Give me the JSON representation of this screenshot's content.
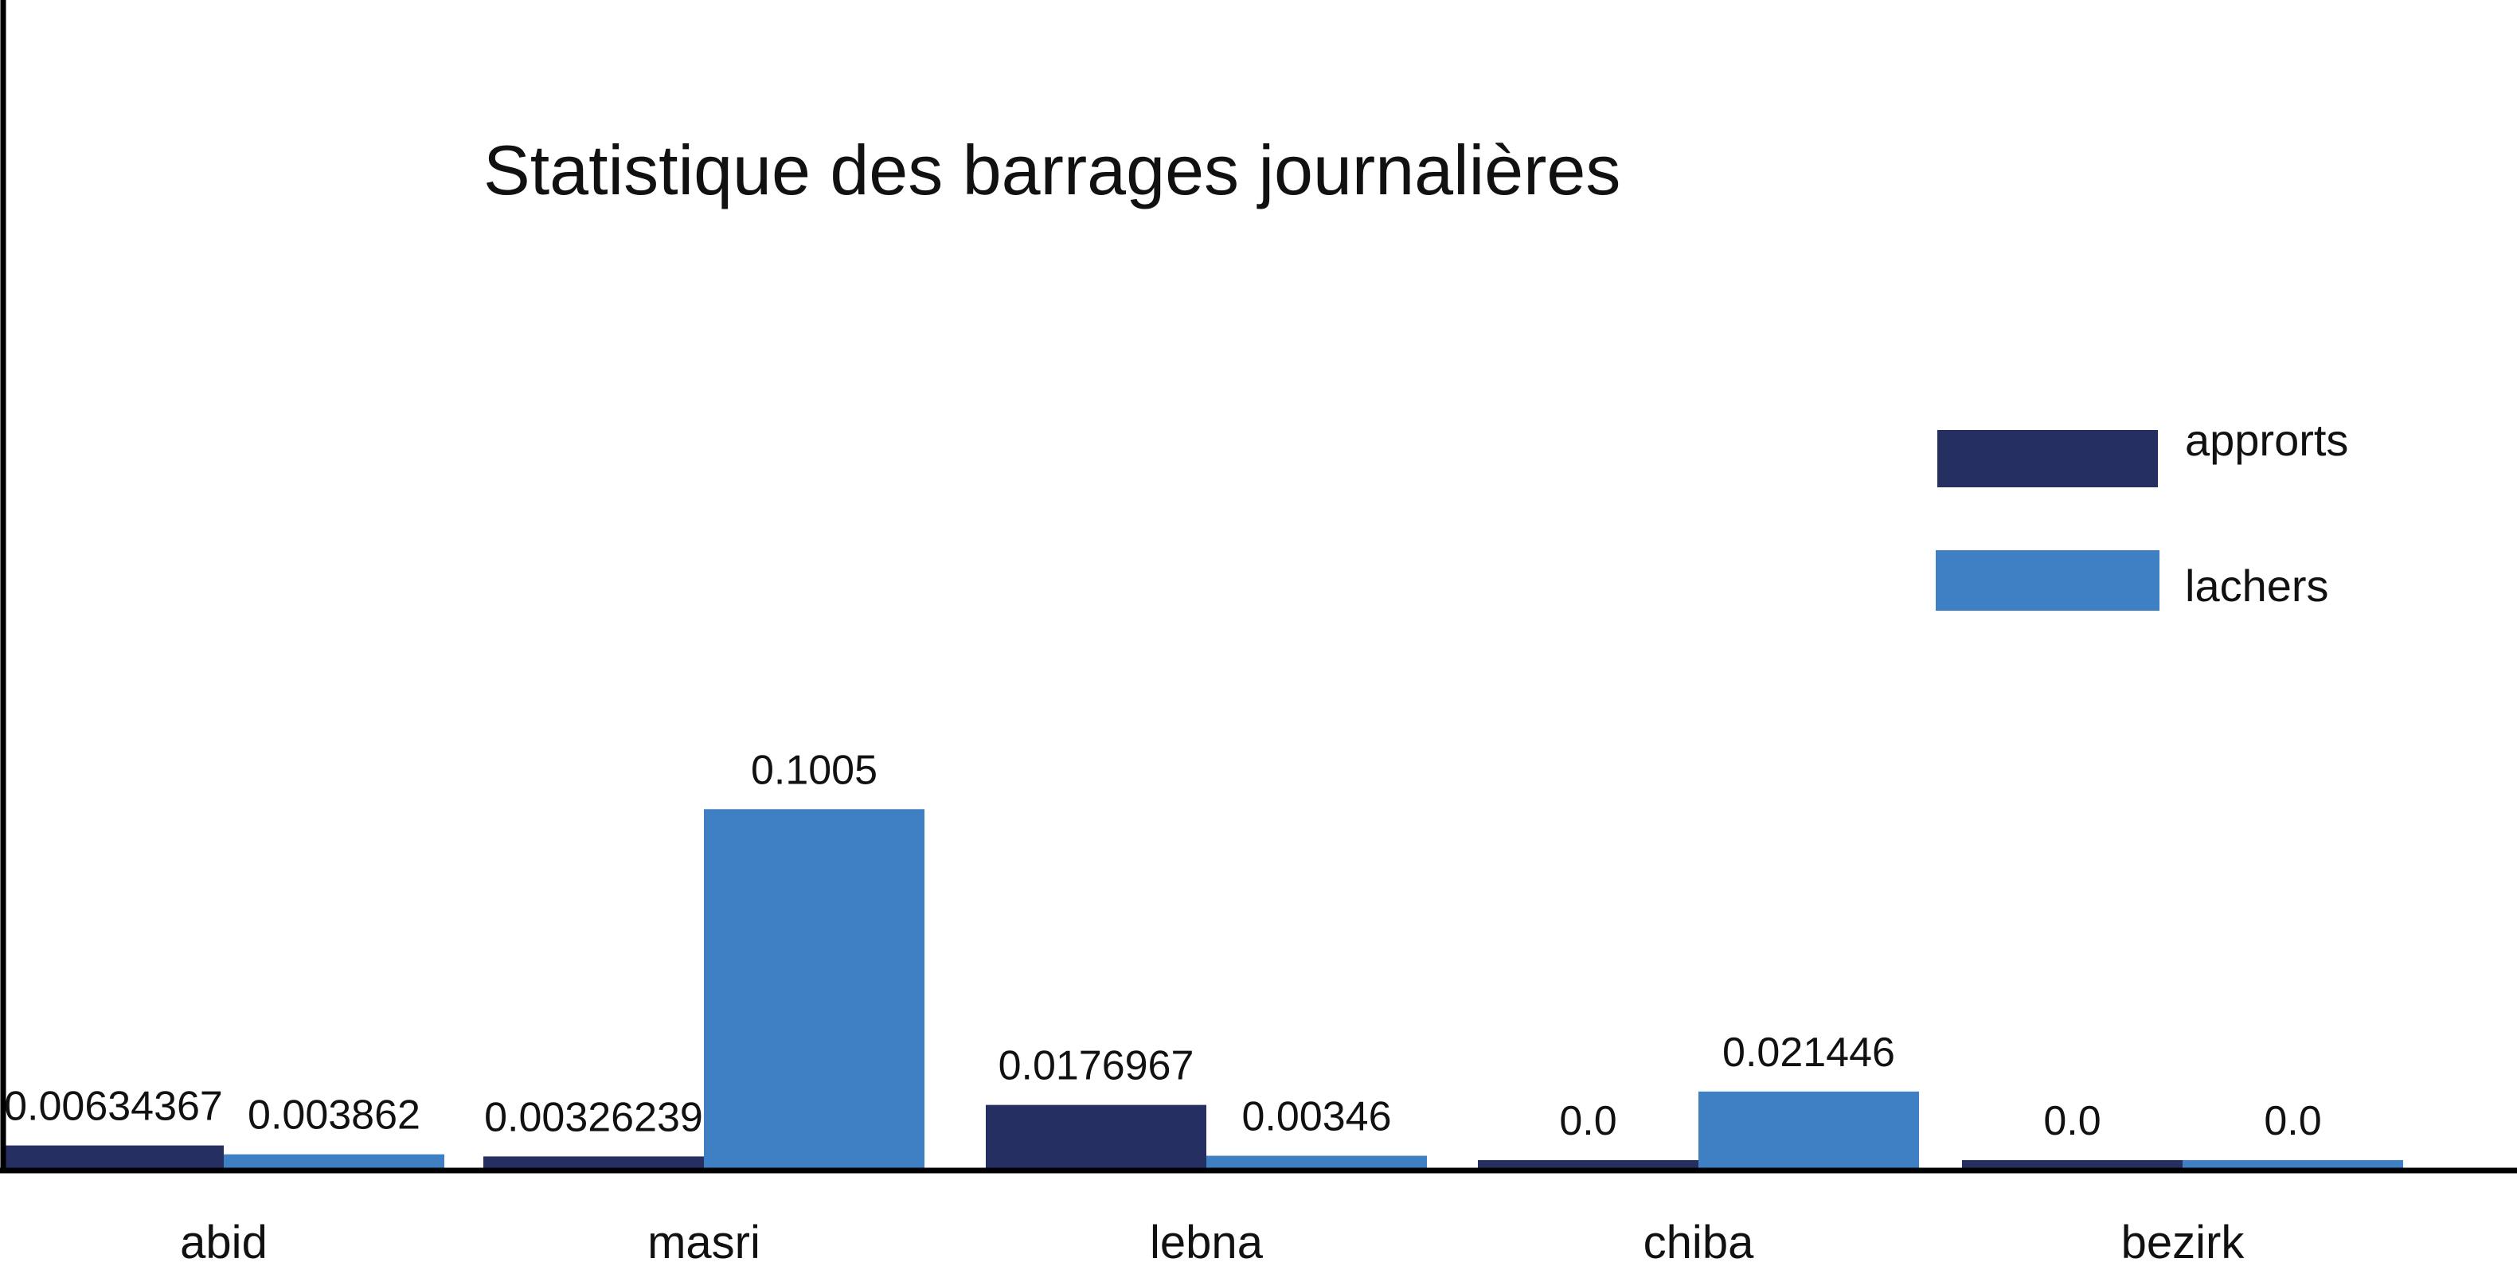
{
  "chart_data": {
    "type": "bar",
    "title": "Statistique des barrages journalières",
    "xlabel": "",
    "ylabel": "",
    "categories": [
      "abid",
      "masri",
      "lebna",
      "chiba",
      "bezirk"
    ],
    "series": [
      {
        "name": "approrts",
        "color": "#252f62",
        "values": [
          0.00634367,
          0.00326239,
          0.0176967,
          0.0,
          0.0
        ],
        "labels": [
          "0.00634367",
          "0.00326239",
          "0.0176967",
          "0.0",
          "0.0"
        ]
      },
      {
        "name": "lachers",
        "color": "#3f7fc3",
        "values": [
          0.003862,
          0.1005,
          0.00346,
          0.021446,
          0.0
        ],
        "labels": [
          "0.003862",
          "0.1005",
          "0.00346",
          "0.021446",
          "0.0"
        ]
      }
    ],
    "grid": false,
    "legend_position": "right"
  }
}
